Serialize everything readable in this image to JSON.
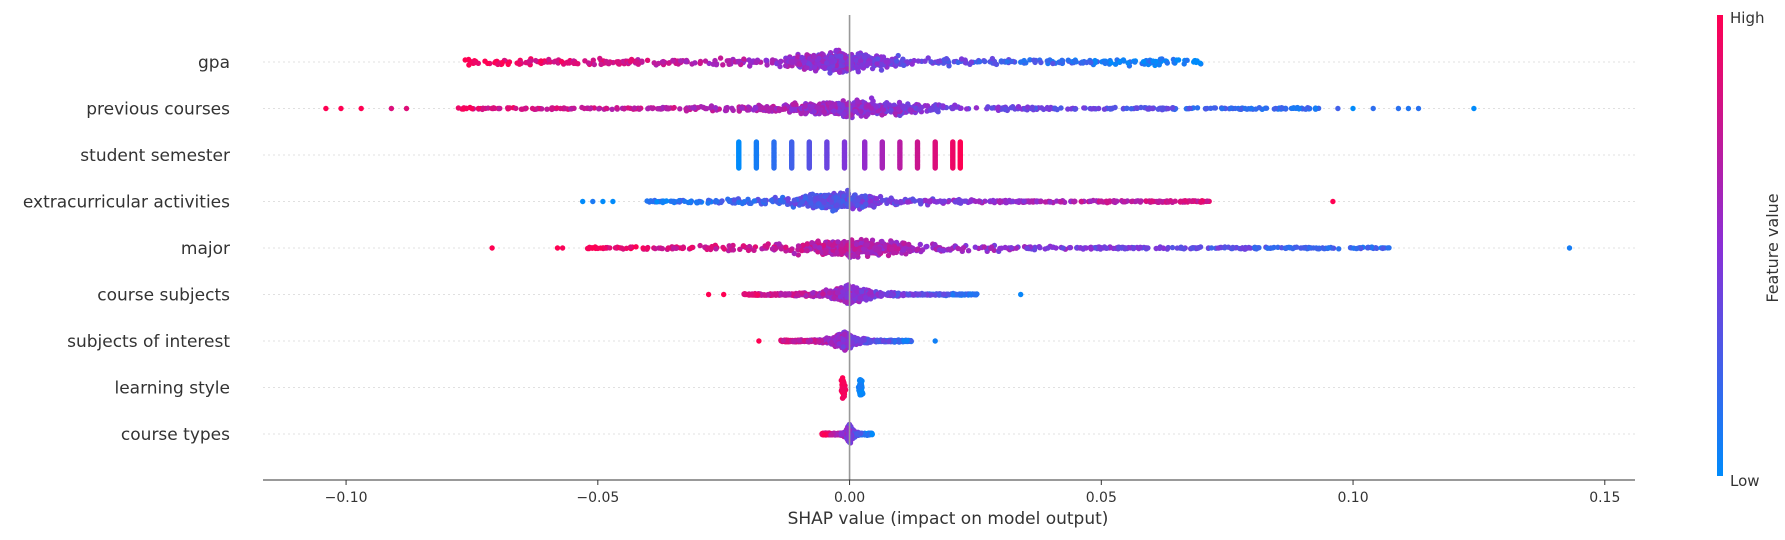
{
  "chart_data": {
    "type": "scatter",
    "subtype": "shap-beeswarm",
    "title": "",
    "xlabel": "SHAP value (impact on model output)",
    "ylabel": "",
    "xlim": [
      -0.1165,
      0.156
    ],
    "xticks": [
      -0.1,
      -0.05,
      0.0,
      0.05,
      0.1,
      0.15
    ],
    "xtick_labels": [
      "−0.10",
      "−0.05",
      "0.00",
      "0.05",
      "0.10",
      "0.15"
    ],
    "grid": false,
    "features": [
      {
        "name": "gpa",
        "x_range": [
          -0.077,
          0.07
        ],
        "pattern": "continuous",
        "low_side": "right",
        "dense_center": -0.002,
        "outliers": []
      },
      {
        "name": "previous courses",
        "x_range": [
          -0.104,
          0.124
        ],
        "pattern": "continuous",
        "low_side": "right",
        "dense_center": 0.001,
        "outliers": [
          -0.104,
          -0.101,
          -0.097,
          -0.091,
          -0.088,
          0.097,
          0.1,
          0.104,
          0.109,
          0.111,
          0.113,
          0.124
        ]
      },
      {
        "name": "student semester",
        "x_range": [
          -0.022,
          0.022
        ],
        "pattern": "discrete",
        "levels": [
          -0.022,
          -0.0185,
          -0.015,
          -0.0115,
          -0.008,
          -0.0045,
          -0.001,
          0.003,
          0.0065,
          0.01,
          0.0135,
          0.017,
          0.0205,
          0.022
        ],
        "low_side": "left"
      },
      {
        "name": "extracurricular activities",
        "x_range": [
          -0.053,
          0.096
        ],
        "pattern": "continuous",
        "low_side": "left",
        "dense_center": -0.002,
        "outliers": [
          -0.053,
          -0.051,
          -0.049,
          -0.047,
          -0.035,
          0.03,
          0.038,
          0.046,
          0.05,
          0.056,
          0.06,
          0.096
        ]
      },
      {
        "name": "major",
        "x_range": [
          -0.071,
          0.143
        ],
        "pattern": "continuous",
        "low_side": "right",
        "dense_center": 0.002,
        "outliers": [
          -0.071,
          -0.058,
          -0.057,
          -0.051,
          -0.041,
          -0.036,
          -0.033,
          0.041,
          0.047,
          0.054,
          0.068,
          0.078,
          0.143
        ]
      },
      {
        "name": "course subjects",
        "x_range": [
          -0.028,
          0.034
        ],
        "pattern": "continuous",
        "low_side": "right",
        "dense_center": 0.0,
        "outliers": [
          -0.028,
          -0.025,
          0.025,
          0.034
        ]
      },
      {
        "name": "subjects of interest",
        "x_range": [
          -0.018,
          0.017
        ],
        "pattern": "continuous",
        "low_side": "right",
        "dense_center": -0.001,
        "outliers": [
          -0.018,
          0.017
        ]
      },
      {
        "name": "learning style",
        "x_range": [
          -0.002,
          0.002
        ],
        "pattern": "two-cluster",
        "clusters": [
          -0.0012,
          0.0022
        ],
        "low_side": "right"
      },
      {
        "name": "course types",
        "x_range": [
          -0.0055,
          0.0045
        ],
        "pattern": "continuous",
        "low_side": "right",
        "dense_center": 0.0,
        "outliers": []
      }
    ],
    "colorbar": {
      "label": "Feature value",
      "high_label": "High",
      "low_label": "Low",
      "high_color": "#ff0052",
      "mid_color": "#8b2fd6",
      "low_color": "#008bfb"
    },
    "zero_line_color": "#999999"
  }
}
